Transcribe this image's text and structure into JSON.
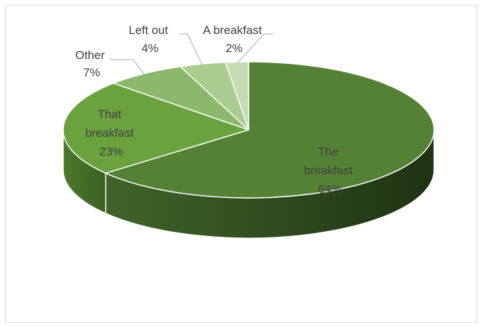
{
  "chart_data": {
    "type": "pie",
    "style": "3d",
    "title": "",
    "slices": [
      {
        "label_lines": [
          "The",
          "breakfast"
        ],
        "percent_label": "64%",
        "value": 64,
        "color": "#548235"
      },
      {
        "label_lines": [
          "That",
          "breakfast"
        ],
        "percent_label": "23%",
        "value": 23,
        "color": "#6aa23e"
      },
      {
        "label_lines": [
          "Other"
        ],
        "percent_label": "7%",
        "value": 7,
        "color": "#8cb86c"
      },
      {
        "label_lines": [
          "Left out"
        ],
        "percent_label": "4%",
        "value": 4,
        "color": "#a9cc8f"
      },
      {
        "label_lines": [
          "A breakfast"
        ],
        "percent_label": "2%",
        "value": 2,
        "color": "#c5dcb2"
      }
    ],
    "legend": "none"
  }
}
